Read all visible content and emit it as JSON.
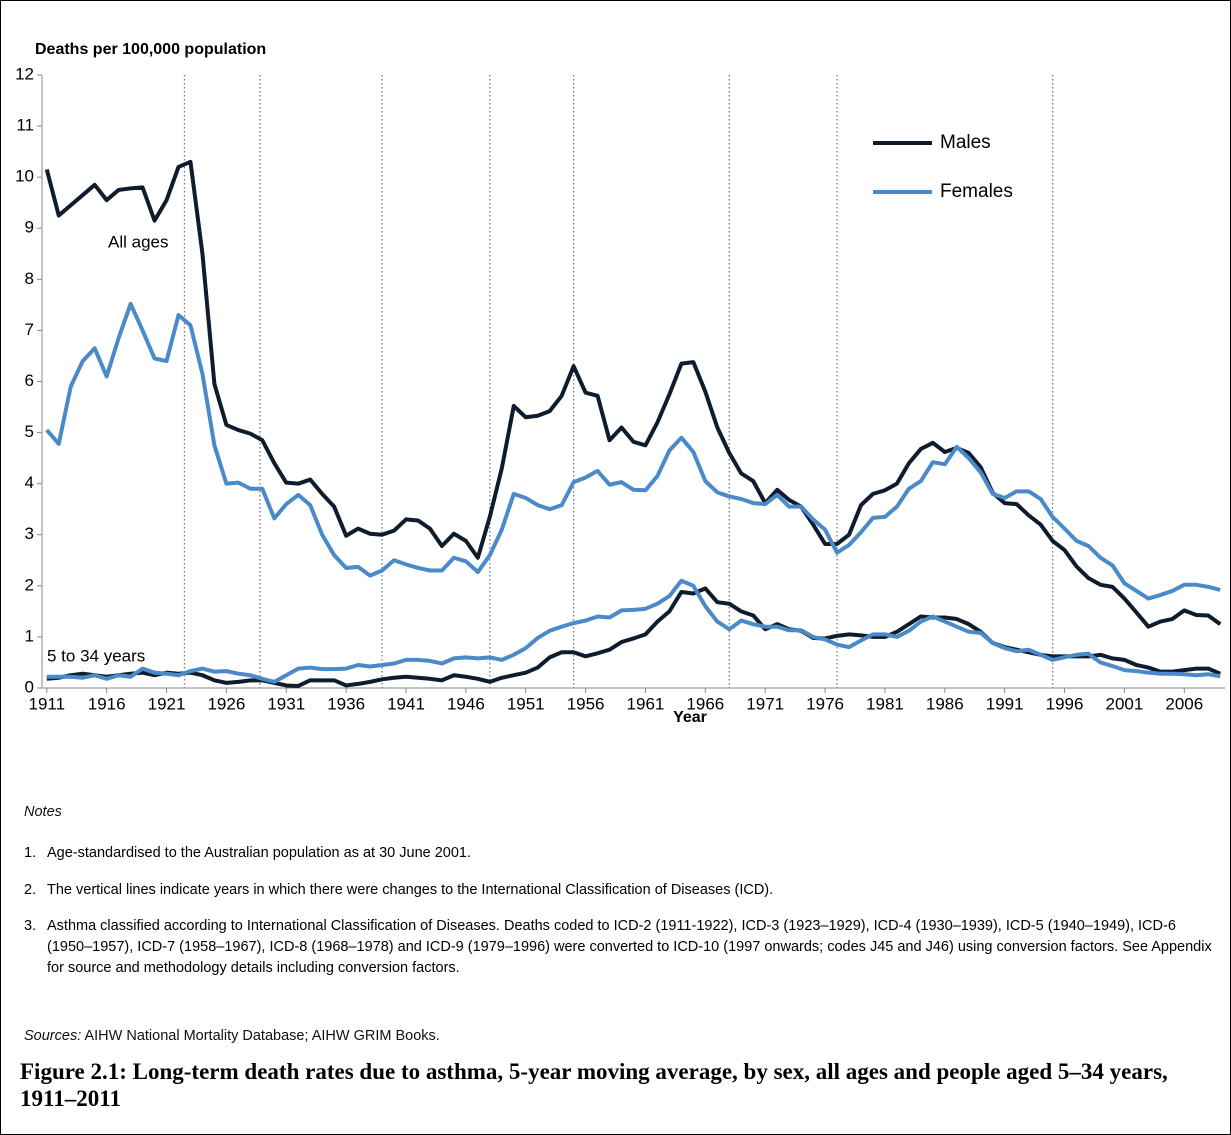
{
  "chart_data": {
    "type": "line",
    "y_axis_title": "Deaths per 100,000 population",
    "x_axis_title": "Year",
    "annotations": {
      "all_ages": "All ages",
      "young": "5 to 34 years"
    },
    "x": [
      1911,
      1912,
      1913,
      1914,
      1915,
      1916,
      1917,
      1918,
      1919,
      1920,
      1921,
      1922,
      1923,
      1924,
      1925,
      1926,
      1927,
      1928,
      1929,
      1930,
      1931,
      1932,
      1933,
      1934,
      1935,
      1936,
      1937,
      1938,
      1939,
      1940,
      1941,
      1942,
      1943,
      1944,
      1945,
      1946,
      1947,
      1948,
      1949,
      1950,
      1951,
      1952,
      1953,
      1954,
      1955,
      1956,
      1957,
      1958,
      1959,
      1960,
      1961,
      1962,
      1963,
      1964,
      1965,
      1966,
      1967,
      1968,
      1969,
      1970,
      1971,
      1972,
      1973,
      1974,
      1975,
      1976,
      1977,
      1978,
      1979,
      1980,
      1981,
      1982,
      1983,
      1984,
      1985,
      1986,
      1987,
      1988,
      1989,
      1990,
      1991,
      1992,
      1993,
      1994,
      1995,
      1996,
      1997,
      1998,
      1999,
      2000,
      2001,
      2002,
      2003,
      2004,
      2005,
      2006,
      2007,
      2008,
      2009
    ],
    "series": [
      {
        "name": "Males",
        "color": "#0f1c2e",
        "values": [
          10.15,
          9.25,
          9.45,
          9.65,
          9.85,
          9.55,
          9.75,
          9.78,
          9.8,
          9.15,
          9.55,
          10.2,
          10.3,
          8.5,
          5.95,
          5.15,
          5.05,
          4.98,
          4.85,
          4.4,
          4.02,
          4.0,
          4.08,
          3.8,
          3.55,
          2.98,
          3.12,
          3.02,
          3.0,
          3.08,
          3.3,
          3.28,
          3.12,
          2.78,
          3.02,
          2.88,
          2.55,
          3.35,
          4.3,
          5.52,
          5.3,
          5.33,
          5.42,
          5.72,
          6.3,
          5.78,
          5.72,
          4.85,
          5.1,
          4.82,
          4.75,
          5.2,
          5.75,
          6.35,
          6.38,
          5.8,
          5.1,
          4.6,
          4.2,
          4.05,
          3.62,
          3.88,
          3.68,
          3.55,
          3.2,
          2.82,
          2.82,
          3.0,
          3.58,
          3.8,
          3.87,
          4.0,
          4.4,
          4.68,
          4.8,
          4.62,
          4.7,
          4.6,
          4.32,
          3.82,
          3.62,
          3.6,
          3.38,
          3.2,
          2.88,
          2.7,
          2.38,
          2.15,
          2.02,
          1.98,
          1.75,
          1.48,
          1.2,
          1.3,
          1.35,
          1.52,
          1.43,
          1.42,
          1.25
        ]
      },
      {
        "name": "Females",
        "color": "#4a8ac9",
        "values": [
          5.05,
          4.78,
          5.9,
          6.4,
          6.65,
          6.1,
          6.85,
          7.52,
          7.0,
          6.45,
          6.4,
          7.3,
          7.1,
          6.15,
          4.75,
          4.0,
          4.02,
          3.9,
          3.9,
          3.32,
          3.6,
          3.78,
          3.58,
          3.0,
          2.6,
          2.35,
          2.37,
          2.2,
          2.3,
          2.5,
          2.42,
          2.35,
          2.3,
          2.3,
          2.55,
          2.48,
          2.27,
          2.6,
          3.1,
          3.8,
          3.72,
          3.58,
          3.5,
          3.58,
          4.03,
          4.12,
          4.25,
          3.98,
          4.03,
          3.88,
          3.87,
          4.15,
          4.65,
          4.9,
          4.62,
          4.05,
          3.83,
          3.75,
          3.7,
          3.62,
          3.6,
          3.78,
          3.55,
          3.55,
          3.3,
          3.1,
          2.65,
          2.8,
          3.05,
          3.33,
          3.35,
          3.55,
          3.9,
          4.05,
          4.42,
          4.38,
          4.72,
          4.5,
          4.22,
          3.8,
          3.72,
          3.85,
          3.85,
          3.7,
          3.35,
          3.12,
          2.88,
          2.78,
          2.55,
          2.4,
          2.05,
          1.9,
          1.75,
          1.82,
          1.9,
          2.02,
          2.02,
          1.98,
          1.92
        ]
      },
      {
        "name": "Males",
        "color": "#0f1c2e",
        "values": [
          0.18,
          0.2,
          0.25,
          0.28,
          0.25,
          0.22,
          0.25,
          0.28,
          0.3,
          0.25,
          0.3,
          0.28,
          0.3,
          0.25,
          0.15,
          0.1,
          0.12,
          0.15,
          0.15,
          0.1,
          0.05,
          0.04,
          0.15,
          0.15,
          0.15,
          0.05,
          0.08,
          0.12,
          0.17,
          0.2,
          0.22,
          0.2,
          0.18,
          0.15,
          0.25,
          0.22,
          0.18,
          0.12,
          0.2,
          0.25,
          0.3,
          0.4,
          0.6,
          0.7,
          0.7,
          0.62,
          0.68,
          0.75,
          0.9,
          0.97,
          1.05,
          1.3,
          1.5,
          1.88,
          1.85,
          1.95,
          1.68,
          1.65,
          1.5,
          1.42,
          1.15,
          1.25,
          1.15,
          1.12,
          0.98,
          0.97,
          1.02,
          1.05,
          1.03,
          1.0,
          1.0,
          1.1,
          1.25,
          1.4,
          1.38,
          1.38,
          1.35,
          1.25,
          1.1,
          0.88,
          0.8,
          0.75,
          0.7,
          0.65,
          0.62,
          0.62,
          0.62,
          0.62,
          0.65,
          0.58,
          0.55,
          0.45,
          0.4,
          0.32,
          0.32,
          0.35,
          0.38,
          0.38,
          0.28
        ]
      },
      {
        "name": "Females",
        "color": "#4a8ac9",
        "values": [
          0.22,
          0.22,
          0.22,
          0.2,
          0.25,
          0.18,
          0.25,
          0.22,
          0.38,
          0.3,
          0.28,
          0.25,
          0.33,
          0.38,
          0.32,
          0.33,
          0.28,
          0.25,
          0.18,
          0.12,
          0.25,
          0.38,
          0.4,
          0.37,
          0.37,
          0.38,
          0.45,
          0.42,
          0.45,
          0.48,
          0.55,
          0.55,
          0.53,
          0.48,
          0.58,
          0.6,
          0.58,
          0.6,
          0.55,
          0.65,
          0.78,
          0.98,
          1.12,
          1.2,
          1.27,
          1.32,
          1.4,
          1.38,
          1.52,
          1.53,
          1.55,
          1.65,
          1.8,
          2.1,
          2.0,
          1.6,
          1.3,
          1.15,
          1.32,
          1.25,
          1.2,
          1.2,
          1.13,
          1.13,
          1.0,
          0.95,
          0.85,
          0.8,
          0.93,
          1.05,
          1.05,
          1.0,
          1.12,
          1.3,
          1.4,
          1.3,
          1.2,
          1.1,
          1.08,
          0.88,
          0.78,
          0.72,
          0.75,
          0.65,
          0.55,
          0.6,
          0.65,
          0.67,
          0.5,
          0.43,
          0.35,
          0.33,
          0.3,
          0.28,
          0.28,
          0.27,
          0.25,
          0.27,
          0.23
        ]
      }
    ],
    "vlines": [
      1922.5,
      1928.8,
      1939,
      1948,
      1955,
      1968,
      1977,
      1995
    ],
    "xlim": [
      1910.6,
      2009.4
    ],
    "xticks": [
      1911,
      1916,
      1921,
      1926,
      1931,
      1936,
      1941,
      1946,
      1951,
      1956,
      1961,
      1966,
      1971,
      1976,
      1981,
      1986,
      1991,
      1996,
      2001,
      2006
    ],
    "ylim": [
      0,
      12
    ],
    "yticks": [
      0,
      1,
      2,
      3,
      4,
      5,
      6,
      7,
      8,
      9,
      10,
      11,
      12
    ],
    "grid": false,
    "legend": "top-right"
  },
  "notes": {
    "heading": "Notes",
    "items": [
      {
        "number": "1.",
        "text": "Age-standardised to the Australian population as at 30 June 2001."
      },
      {
        "number": "2.",
        "text": "The vertical lines indicate years in which there were changes to the International Classification of Diseases (ICD)."
      },
      {
        "number": "3.",
        "text": "Asthma classified according to International Classification of Diseases. Deaths coded to ICD-2 (1911-1922), ICD-3 (1923–1929), ICD-4 (1930–1939), ICD-5 (1940–1949), ICD-6 (1950–1957), ICD-7 (1958–1967), ICD-8 (1968–1978) and ICD-9 (1979–1996) were converted to ICD-10 (1997 onwards; codes J45 and J46) using conversion factors. See Appendix for source and methodology details including conversion factors."
      }
    ],
    "sources_label": "Sources:",
    "sources_text": "AIHW National Mortality Database; AIHW GRIM Books."
  },
  "caption": "Figure 2.1: Long-term death rates due to asthma, 5-year moving average, by sex, all ages and people aged 5–34 years, 1911–2011"
}
